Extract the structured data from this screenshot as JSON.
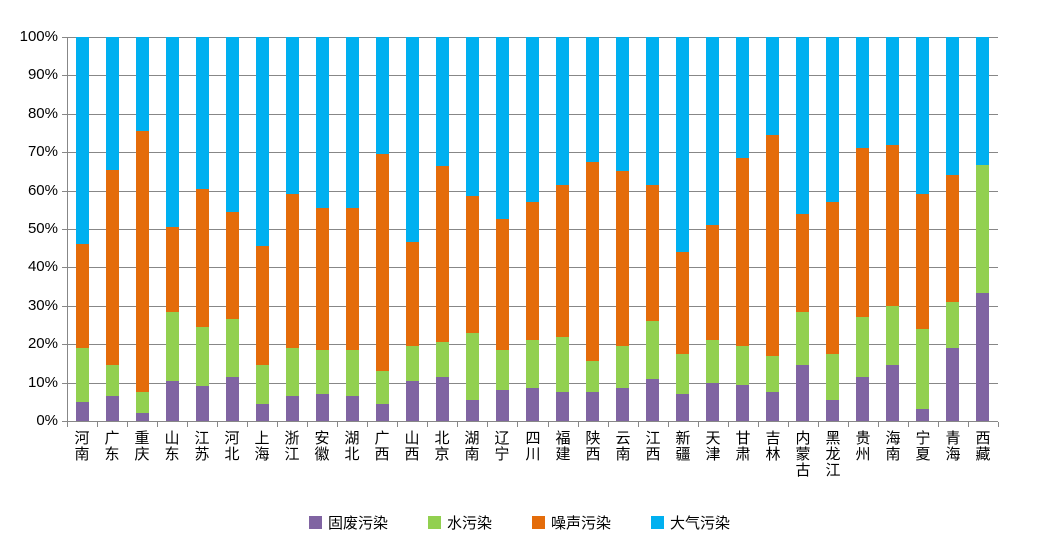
{
  "chart_data": {
    "type": "bar",
    "stacked": true,
    "unit": "percent",
    "title": "",
    "xlabel": "",
    "ylabel": "",
    "ylim": [
      0,
      100
    ],
    "ytick_step": 10,
    "y_tick_labels": [
      "0%",
      "10%",
      "20%",
      "30%",
      "40%",
      "50%",
      "60%",
      "70%",
      "80%",
      "90%",
      "100%"
    ],
    "grid": "horizontal",
    "legend_position": "bottom",
    "categories": [
      "河南",
      "广东",
      "重庆",
      "山东",
      "江苏",
      "河北",
      "上海",
      "浙江",
      "安徽",
      "湖北",
      "广西",
      "山西",
      "北京",
      "湖南",
      "辽宁",
      "四川",
      "福建",
      "陕西",
      "云南",
      "江西",
      "新疆",
      "天津",
      "甘肃",
      "吉林",
      "内蒙古",
      "黑龙江",
      "贵州",
      "海南",
      "宁夏",
      "青海",
      "西藏"
    ],
    "series": [
      {
        "name": "固废污染",
        "color": "#8064A2",
        "values": [
          5,
          6.5,
          2,
          10.5,
          9,
          11.5,
          4.5,
          6.5,
          7,
          6.5,
          4.5,
          10.5,
          11.5,
          5.5,
          8,
          8.5,
          7.5,
          7.5,
          8.5,
          11,
          7,
          10,
          9.5,
          7.5,
          14.5,
          5.5,
          11.5,
          14.5,
          3,
          19,
          33.3
        ]
      },
      {
        "name": "水污染",
        "color": "#92D050",
        "values": [
          14,
          8,
          5.5,
          18,
          15.5,
          15,
          10,
          12.5,
          11.5,
          12,
          8.5,
          9,
          9,
          17.5,
          10.5,
          12.5,
          14.5,
          8,
          11,
          15,
          10.5,
          11,
          10,
          9.5,
          14,
          12,
          15.5,
          15.5,
          21,
          12,
          33.3
        ]
      },
      {
        "name": "噪声污染",
        "color": "#E46C0A",
        "values": [
          27,
          51,
          68,
          22,
          36,
          28,
          31,
          40,
          37,
          37,
          56.5,
          27,
          46,
          35.5,
          34,
          36,
          39.5,
          52,
          45.5,
          35.5,
          26.5,
          30,
          49,
          57.5,
          25.5,
          39.5,
          44,
          42,
          35,
          33,
          0
        ]
      },
      {
        "name": "大气污染",
        "color": "#00B0F0",
        "values": [
          54,
          34.5,
          24.5,
          49.5,
          39.5,
          45.5,
          54.5,
          41,
          44.5,
          44.5,
          30.5,
          53.5,
          33.5,
          41.5,
          47.5,
          43,
          38.5,
          32.5,
          35,
          38.5,
          56,
          49,
          31.5,
          25.5,
          46,
          43,
          29,
          28,
          41,
          36,
          33.4
        ]
      }
    ]
  },
  "style": {
    "grid_color": "#878787",
    "axis_color": "#878787",
    "text_color": "#000000",
    "background": "#FFFFFF"
  }
}
